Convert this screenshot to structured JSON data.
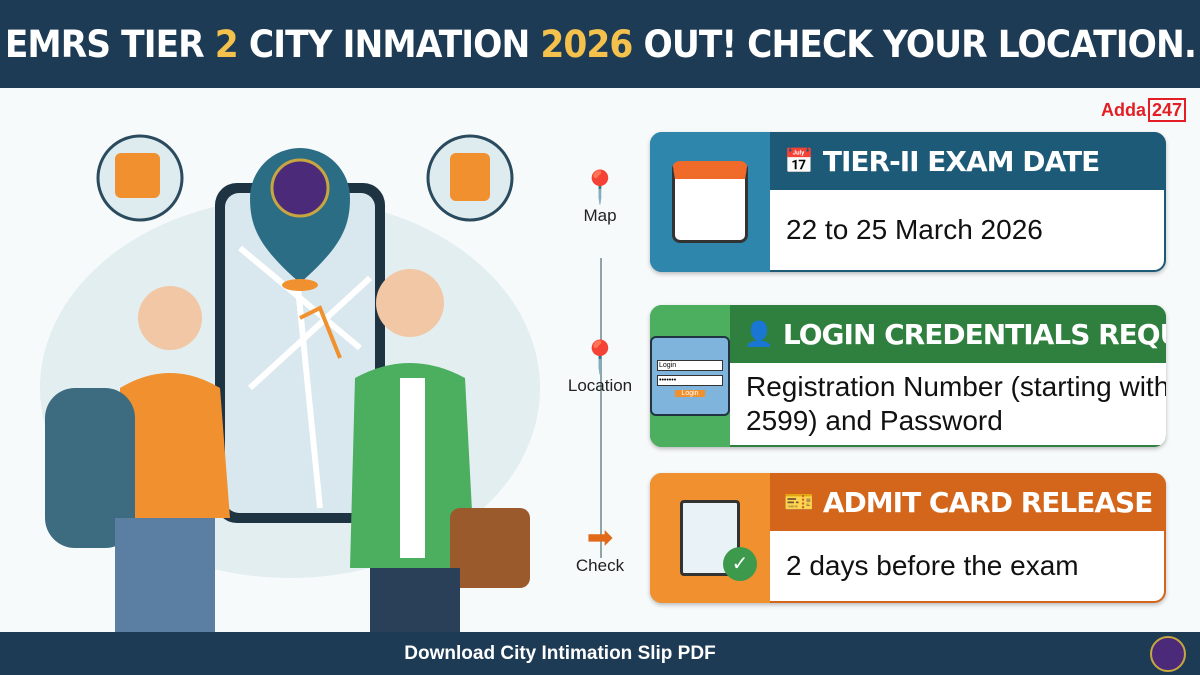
{
  "header": {
    "title_parts": [
      "EMRS TIER ",
      "2",
      " CITY INMATION ",
      "2026",
      " OUT! CHECK YOUR LOCATION."
    ]
  },
  "brand": {
    "name": "Adda",
    "suffix": "247",
    "color": "#e31e24"
  },
  "flow": {
    "steps": [
      {
        "label": "Map",
        "icon": "map-pin-icon"
      },
      {
        "label": "Location",
        "icon": "location-pin-icon"
      },
      {
        "label": "Check",
        "icon": "arrow-right-icon"
      }
    ]
  },
  "cards": [
    {
      "title": "TIER-II EXAM DATE",
      "text": "22 to 25 March 2026",
      "icon": "calendar-icon",
      "side_color": "#2f86ad",
      "head_color": "#1d5a78"
    },
    {
      "title": "LOGIN CREDENTIALS REQUIRED",
      "text": "Registration Number (starting with 2599) and Password",
      "icon": "user-icon",
      "side_color": "#4caf5f",
      "head_color": "#2f7f3f",
      "login_label": "Login",
      "password_mask": "•••••••",
      "login_button": "Login"
    },
    {
      "title": "ADMIT CARD RELEASE",
      "text": "2 days before the exam",
      "icon": "ticket-icon",
      "side_color": "#f0902e",
      "head_color": "#d4661b"
    }
  ],
  "footer": {
    "text": "Download City Intimation Slip PDF"
  },
  "colors": {
    "navy": "#1d3b55",
    "highlight": "#f4c14c"
  }
}
